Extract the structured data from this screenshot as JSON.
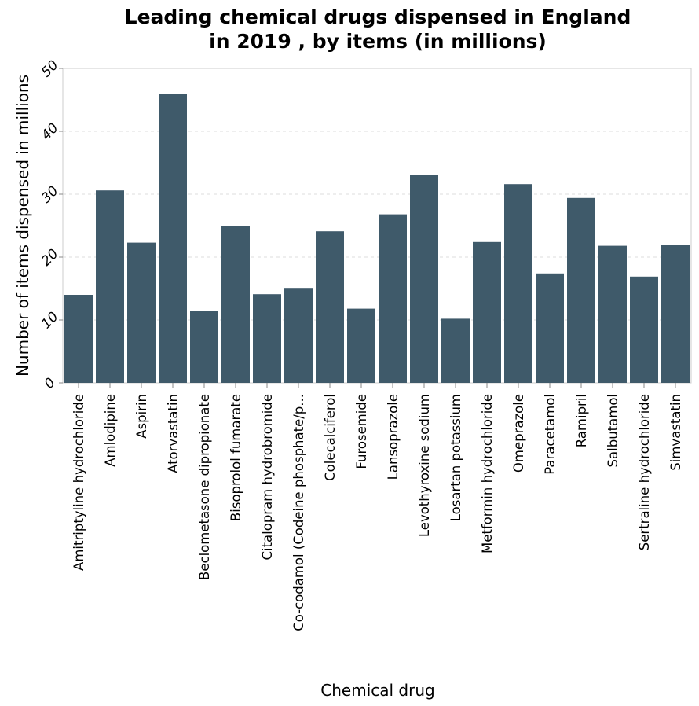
{
  "chart_data": {
    "type": "bar",
    "title_lines": [
      "Leading chemical drugs dispensed in England",
      "in 2019 , by items (in millions)"
    ],
    "xlabel": "Chemical drug",
    "ylabel": "Number of items dispensed in millions",
    "ylim": [
      0,
      50
    ],
    "yticks": [
      0,
      10,
      20,
      30,
      40,
      50
    ],
    "grid": "horizontal dashed",
    "bar_color": "#3f5a6a",
    "categories": [
      "Amitriptyline hydrochloride",
      "Amlodipine",
      "Aspirin",
      "Atorvastatin",
      "Beclometasone dipropionate",
      "Bisoprolol fumarate",
      "Citalopram hydrobromide",
      "Co-codamol (Codeine phosphate/p...",
      "Colecalciferol",
      "Furosemide",
      "Lansoprazole",
      "Levothyroxine sodium",
      "Losartan potassium",
      "Metformin hydrochloride",
      "Omeprazole",
      "Paracetamol",
      "Ramipril",
      "Salbutamol",
      "Sertraline hydrochloride",
      "Simvastatin"
    ],
    "values": [
      14.0,
      30.6,
      22.3,
      45.9,
      11.4,
      25.0,
      14.1,
      15.1,
      24.1,
      11.8,
      26.8,
      33.0,
      10.2,
      22.4,
      31.6,
      17.4,
      29.4,
      21.8,
      16.9,
      21.9
    ]
  }
}
